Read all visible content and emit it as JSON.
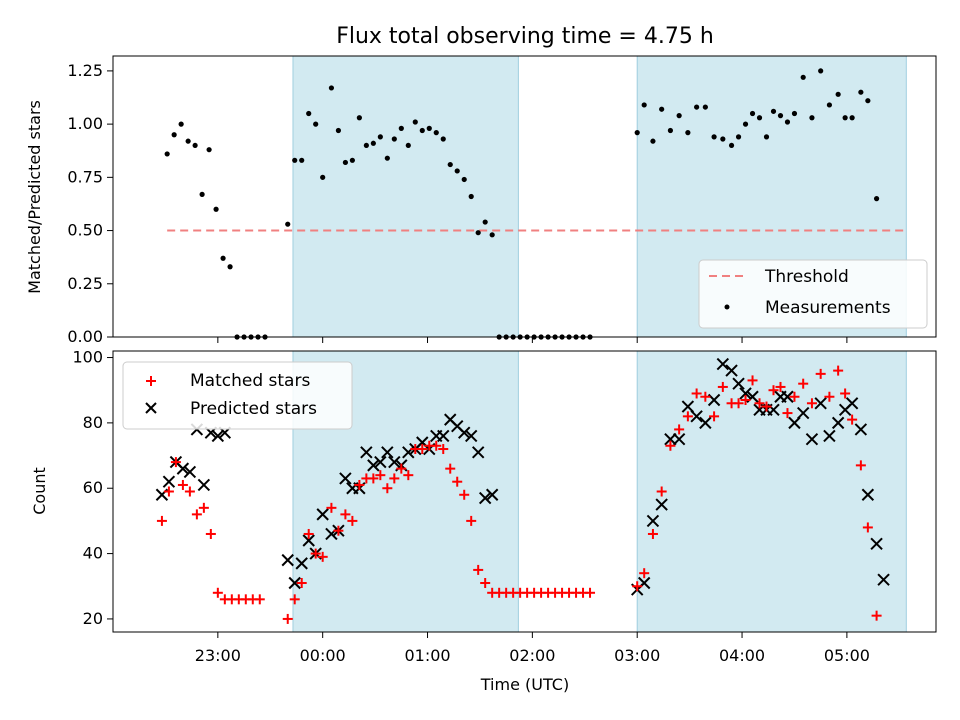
{
  "chart_data": [
    {
      "type": "scatter",
      "title": "Flux total observing time = 4.75 h",
      "xlabel": "",
      "ylabel": "Matched/Predicted stars",
      "ylim": [
        0,
        1.32
      ],
      "yticks": [
        "0.00",
        "0.25",
        "0.50",
        "0.75",
        "1.00",
        "1.25"
      ],
      "grid": false,
      "legend": "bottom-right",
      "shaded_spans": [
        [
          -0.2833,
          1.8667
        ],
        [
          3.0,
          5.5667
        ]
      ],
      "shade_color": "#add8e6",
      "threshold": {
        "name": "Threshold",
        "value": 0.5,
        "x_range": [
          -1.4833,
          5.5667
        ],
        "color": "#f08080"
      },
      "series": [
        {
          "name": "Measurements",
          "color": "#000000",
          "points": [
            [
              -1.4833,
              0.86
            ],
            [
              -1.4167,
              0.95
            ],
            [
              -1.35,
              1.0
            ],
            [
              -1.2833,
              0.92
            ],
            [
              -1.2167,
              0.9
            ],
            [
              -1.15,
              0.67
            ],
            [
              -1.0833,
              0.88
            ],
            [
              -1.0167,
              0.6
            ],
            [
              -0.95,
              0.37
            ],
            [
              -0.8833,
              0.33
            ],
            [
              -0.8167,
              0.0
            ],
            [
              -0.75,
              0.0
            ],
            [
              -0.6833,
              0.0
            ],
            [
              -0.6167,
              0.0
            ],
            [
              -0.55,
              0.0
            ],
            [
              -0.3333,
              0.53
            ],
            [
              -0.2667,
              0.83
            ],
            [
              -0.2,
              0.83
            ],
            [
              -0.1333,
              1.05
            ],
            [
              -0.0667,
              1.0
            ],
            [
              0.0,
              0.75
            ],
            [
              0.0833,
              1.17
            ],
            [
              0.15,
              0.97
            ],
            [
              0.2167,
              0.82
            ],
            [
              0.2833,
              0.83
            ],
            [
              0.35,
              1.03
            ],
            [
              0.4167,
              0.9
            ],
            [
              0.4833,
              0.91
            ],
            [
              0.55,
              0.94
            ],
            [
              0.6167,
              0.84
            ],
            [
              0.6833,
              0.93
            ],
            [
              0.75,
              0.98
            ],
            [
              0.8167,
              0.9
            ],
            [
              0.8833,
              1.01
            ],
            [
              0.95,
              0.97
            ],
            [
              1.0167,
              0.98
            ],
            [
              1.0833,
              0.96
            ],
            [
              1.15,
              0.93
            ],
            [
              1.2167,
              0.81
            ],
            [
              1.2833,
              0.78
            ],
            [
              1.35,
              0.74
            ],
            [
              1.4167,
              0.66
            ],
            [
              1.4833,
              0.49
            ],
            [
              1.55,
              0.54
            ],
            [
              1.6167,
              0.48
            ],
            [
              1.6833,
              0.0
            ],
            [
              1.75,
              0.0
            ],
            [
              1.8167,
              0.0
            ],
            [
              1.8833,
              0.0
            ],
            [
              1.95,
              0.0
            ],
            [
              2.0167,
              0.0
            ],
            [
              2.0833,
              0.0
            ],
            [
              2.15,
              0.0
            ],
            [
              2.2167,
              0.0
            ],
            [
              2.2833,
              0.0
            ],
            [
              2.35,
              0.0
            ],
            [
              2.4167,
              0.0
            ],
            [
              2.4833,
              0.0
            ],
            [
              2.55,
              0.0
            ],
            [
              3.0,
              0.96
            ],
            [
              3.0667,
              1.09
            ],
            [
              3.15,
              0.92
            ],
            [
              3.2333,
              1.07
            ],
            [
              3.3167,
              0.97
            ],
            [
              3.4,
              1.04
            ],
            [
              3.4833,
              0.96
            ],
            [
              3.5667,
              1.08
            ],
            [
              3.65,
              1.08
            ],
            [
              3.7333,
              0.94
            ],
            [
              3.8167,
              0.93
            ],
            [
              3.9,
              0.9
            ],
            [
              3.9667,
              0.94
            ],
            [
              4.0333,
              1.0
            ],
            [
              4.1,
              1.05
            ],
            [
              4.1667,
              1.03
            ],
            [
              4.2333,
              0.94
            ],
            [
              4.3,
              1.06
            ],
            [
              4.3667,
              1.04
            ],
            [
              4.4333,
              1.01
            ],
            [
              4.5,
              1.05
            ],
            [
              4.5833,
              1.22
            ],
            [
              4.6667,
              1.03
            ],
            [
              4.75,
              1.25
            ],
            [
              4.8333,
              1.09
            ],
            [
              4.9167,
              1.14
            ],
            [
              4.9833,
              1.03
            ],
            [
              5.05,
              1.03
            ],
            [
              5.1333,
              1.15
            ],
            [
              5.2,
              1.11
            ],
            [
              5.2833,
              0.65
            ]
          ]
        }
      ]
    },
    {
      "type": "scatter",
      "title": "",
      "xlabel": "Time (UTC)",
      "ylabel": "Count",
      "xlim": [
        -2.0,
        5.85
      ],
      "ylim": [
        16,
        102
      ],
      "xticks": [
        "23:00",
        "00:00",
        "01:00",
        "02:00",
        "03:00",
        "04:00",
        "05:00"
      ],
      "yticks": [
        "20",
        "40",
        "60",
        "80",
        "100"
      ],
      "grid": false,
      "legend": "top-left",
      "series": [
        {
          "name": "Matched stars",
          "marker": "plus",
          "color": "#ff0000",
          "points": [
            [
              -1.5333,
              50
            ],
            [
              -1.4667,
              59
            ],
            [
              -1.4,
              68
            ],
            [
              -1.3333,
              61
            ],
            [
              -1.2667,
              59
            ],
            [
              -1.2,
              52
            ],
            [
              -1.1333,
              54
            ],
            [
              -1.0667,
              46
            ],
            [
              -1.0,
              28
            ],
            [
              -0.9333,
              26
            ],
            [
              -0.8667,
              26
            ],
            [
              -0.8,
              26
            ],
            [
              -0.7333,
              26
            ],
            [
              -0.6667,
              26
            ],
            [
              -0.6,
              26
            ],
            [
              -0.3333,
              20
            ],
            [
              -0.2667,
              26
            ],
            [
              -0.2,
              31
            ],
            [
              -0.1333,
              46
            ],
            [
              -0.0667,
              40
            ],
            [
              0.0,
              39
            ],
            [
              0.0833,
              54
            ],
            [
              0.15,
              47
            ],
            [
              0.2167,
              52
            ],
            [
              0.2833,
              50
            ],
            [
              0.35,
              61
            ],
            [
              0.4167,
              63
            ],
            [
              0.4833,
              63
            ],
            [
              0.55,
              64
            ],
            [
              0.6167,
              60
            ],
            [
              0.6833,
              63
            ],
            [
              0.75,
              66
            ],
            [
              0.8167,
              64
            ],
            [
              0.8833,
              72
            ],
            [
              0.95,
              72
            ],
            [
              1.0167,
              73
            ],
            [
              1.0833,
              73
            ],
            [
              1.15,
              72
            ],
            [
              1.2167,
              66
            ],
            [
              1.2833,
              62
            ],
            [
              1.35,
              58
            ],
            [
              1.4167,
              50
            ],
            [
              1.4833,
              35
            ],
            [
              1.55,
              31
            ],
            [
              1.6167,
              28
            ],
            [
              1.6833,
              28
            ],
            [
              1.75,
              28
            ],
            [
              1.8167,
              28
            ],
            [
              1.8833,
              28
            ],
            [
              1.95,
              28
            ],
            [
              2.0167,
              28
            ],
            [
              2.0833,
              28
            ],
            [
              2.15,
              28
            ],
            [
              2.2167,
              28
            ],
            [
              2.2833,
              28
            ],
            [
              2.35,
              28
            ],
            [
              2.4167,
              28
            ],
            [
              2.4833,
              28
            ],
            [
              2.55,
              28
            ],
            [
              3.0,
              30
            ],
            [
              3.0667,
              34
            ],
            [
              3.15,
              46
            ],
            [
              3.2333,
              59
            ],
            [
              3.3167,
              73
            ],
            [
              3.4,
              78
            ],
            [
              3.4833,
              82
            ],
            [
              3.5667,
              89
            ],
            [
              3.65,
              88
            ],
            [
              3.7333,
              82
            ],
            [
              3.8167,
              91
            ],
            [
              3.9,
              86
            ],
            [
              3.9667,
              86
            ],
            [
              4.0333,
              87
            ],
            [
              4.1,
              93
            ],
            [
              4.1667,
              86
            ],
            [
              4.2333,
              85
            ],
            [
              4.3,
              90
            ],
            [
              4.3667,
              91
            ],
            [
              4.4333,
              83
            ],
            [
              4.5,
              88
            ],
            [
              4.5833,
              92
            ],
            [
              4.6667,
              86
            ],
            [
              4.75,
              95
            ],
            [
              4.8333,
              88
            ],
            [
              4.9167,
              96
            ],
            [
              4.9833,
              89
            ],
            [
              5.05,
              81
            ],
            [
              5.1333,
              67
            ],
            [
              5.2,
              48
            ],
            [
              5.2833,
              21
            ]
          ]
        },
        {
          "name": "Predicted stars",
          "marker": "x",
          "color": "#000000",
          "points": [
            [
              -1.5333,
              58
            ],
            [
              -1.4667,
              62
            ],
            [
              -1.4,
              68
            ],
            [
              -1.3333,
              66
            ],
            [
              -1.2667,
              65
            ],
            [
              -1.2,
              78
            ],
            [
              -1.1333,
              61
            ],
            [
              -1.0667,
              77
            ],
            [
              -1.0,
              76
            ],
            [
              -0.9333,
              77
            ],
            [
              -0.3333,
              38
            ],
            [
              -0.2667,
              31
            ],
            [
              -0.2,
              37
            ],
            [
              -0.1333,
              44
            ],
            [
              -0.0667,
              40
            ],
            [
              0.0,
              52
            ],
            [
              0.0833,
              46
            ],
            [
              0.15,
              47
            ],
            [
              0.2167,
              63
            ],
            [
              0.2833,
              60
            ],
            [
              0.35,
              60
            ],
            [
              0.4167,
              71
            ],
            [
              0.4833,
              67
            ],
            [
              0.55,
              68
            ],
            [
              0.6167,
              71
            ],
            [
              0.6833,
              68
            ],
            [
              0.75,
              67
            ],
            [
              0.8167,
              71
            ],
            [
              0.8833,
              72
            ],
            [
              0.95,
              74
            ],
            [
              1.0167,
              72
            ],
            [
              1.0833,
              76
            ],
            [
              1.15,
              76
            ],
            [
              1.2167,
              81
            ],
            [
              1.2833,
              79
            ],
            [
              1.35,
              77
            ],
            [
              1.4167,
              76
            ],
            [
              1.4833,
              71
            ],
            [
              1.55,
              57
            ],
            [
              1.6167,
              58
            ],
            [
              3.0,
              29
            ],
            [
              3.0667,
              31
            ],
            [
              3.15,
              50
            ],
            [
              3.2333,
              55
            ],
            [
              3.3167,
              75
            ],
            [
              3.4,
              75
            ],
            [
              3.4833,
              85
            ],
            [
              3.5667,
              82
            ],
            [
              3.65,
              80
            ],
            [
              3.7333,
              87
            ],
            [
              3.8167,
              98
            ],
            [
              3.9,
              96
            ],
            [
              3.9667,
              92
            ],
            [
              4.0333,
              89
            ],
            [
              4.1,
              88
            ],
            [
              4.1667,
              84
            ],
            [
              4.2333,
              84
            ],
            [
              4.3,
              84
            ],
            [
              4.3667,
              88
            ],
            [
              4.4333,
              88
            ],
            [
              4.5,
              80
            ],
            [
              4.5833,
              83
            ],
            [
              4.6667,
              75
            ],
            [
              4.75,
              86
            ],
            [
              4.8333,
              76
            ],
            [
              4.9167,
              80
            ],
            [
              4.9833,
              84
            ],
            [
              5.05,
              86
            ],
            [
              5.1333,
              78
            ],
            [
              5.2,
              58
            ],
            [
              5.2833,
              43
            ],
            [
              5.35,
              32
            ]
          ]
        }
      ]
    }
  ]
}
